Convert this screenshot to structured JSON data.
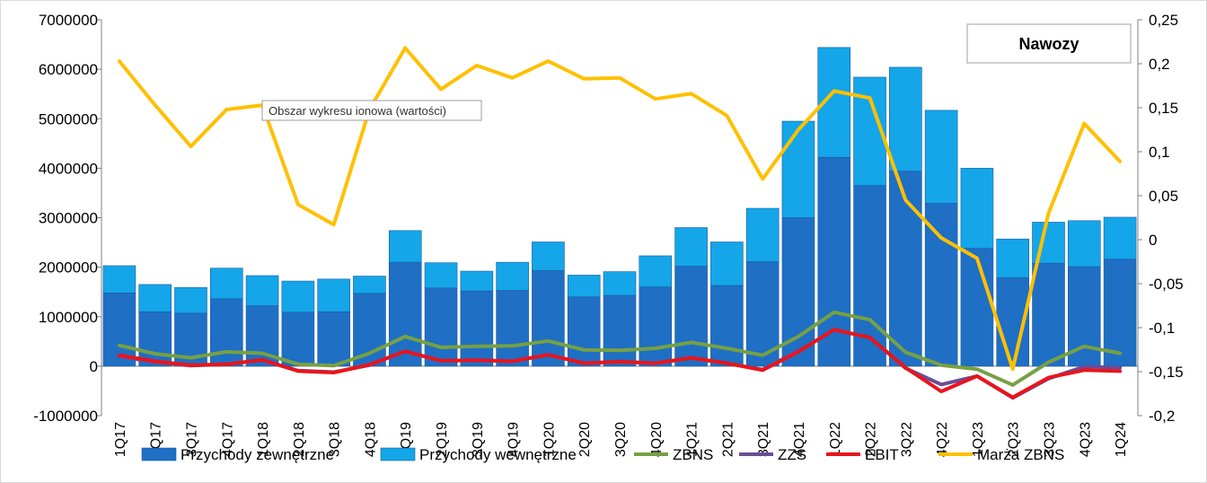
{
  "chart_data": {
    "type": "bar",
    "title": "Nawozy",
    "tooltip": "Obszar wykresu ionowa (wartości)",
    "categories": [
      "1Q17",
      "2Q17",
      "3Q17",
      "4Q17",
      "1Q18",
      "2Q18",
      "3Q18",
      "4Q18",
      "1Q19",
      "2Q19",
      "3Q19",
      "4Q19",
      "1Q20",
      "2Q20",
      "3Q20",
      "4Q20",
      "1Q21",
      "2Q21",
      "3Q21",
      "4Q21",
      "1Q22",
      "2Q22",
      "3Q22",
      "4Q22",
      "1Q23",
      "2Q23",
      "3Q23",
      "4Q23",
      "1Q24"
    ],
    "y_left": {
      "min": -1000000,
      "max": 7000000,
      "step": 1000000,
      "ticks": [
        "-1000000",
        "0",
        "1000000",
        "2000000",
        "3000000",
        "4000000",
        "5000000",
        "6000000",
        "7000000"
      ]
    },
    "y_right": {
      "min": -0.2,
      "max": 0.25,
      "step": 0.05,
      "ticks": [
        "-0,2",
        "-0,15",
        "-0,1",
        "-0,05",
        "0",
        "0,05",
        "0,1",
        "0,15",
        "0,2",
        "0,25"
      ]
    },
    "grid": false,
    "legend_position": "bottom",
    "series": [
      {
        "name": "Przychody zewnętrzne",
        "kind": "stacked-bar",
        "axis": "left",
        "color": "#1F6FC5",
        "values": [
          1480000,
          1100000,
          1070000,
          1360000,
          1220000,
          1090000,
          1100000,
          1470000,
          2100000,
          1580000,
          1520000,
          1530000,
          1930000,
          1400000,
          1430000,
          1600000,
          2020000,
          1630000,
          2110000,
          3000000,
          4220000,
          3650000,
          3940000,
          3290000,
          2380000,
          1790000,
          2080000,
          2010000,
          2160000
        ]
      },
      {
        "name": "Przychody wewnętrzne",
        "kind": "stacked-bar",
        "axis": "left",
        "color": "#14A6E8",
        "values": [
          550000,
          550000,
          520000,
          620000,
          610000,
          630000,
          660000,
          350000,
          640000,
          510000,
          400000,
          570000,
          580000,
          440000,
          480000,
          630000,
          780000,
          880000,
          1080000,
          1950000,
          2220000,
          2190000,
          2100000,
          1880000,
          1620000,
          780000,
          830000,
          930000,
          850000
        ]
      },
      {
        "name": "ZBNS",
        "kind": "line",
        "axis": "left",
        "color": "#77A043",
        "values": [
          420000,
          250000,
          170000,
          290000,
          260000,
          40000,
          10000,
          260000,
          600000,
          380000,
          400000,
          410000,
          510000,
          330000,
          320000,
          360000,
          480000,
          360000,
          220000,
          600000,
          1090000,
          940000,
          280000,
          20000,
          -60000,
          -380000,
          80000,
          400000,
          260000
        ]
      },
      {
        "name": "ZZS",
        "kind": "line",
        "axis": "left",
        "color": "#6B4C96",
        "values": [
          200000,
          80000,
          10000,
          40000,
          120000,
          -90000,
          -120000,
          20000,
          300000,
          110000,
          120000,
          100000,
          230000,
          60000,
          90000,
          60000,
          160000,
          60000,
          -70000,
          310000,
          730000,
          580000,
          -40000,
          -370000,
          -200000,
          -640000,
          -250000,
          -10000,
          -30000
        ]
      },
      {
        "name": "EBIT",
        "kind": "line",
        "axis": "left",
        "color": "#E9141B",
        "values": [
          220000,
          100000,
          20000,
          40000,
          130000,
          -100000,
          -130000,
          30000,
          300000,
          110000,
          120000,
          100000,
          230000,
          60000,
          90000,
          60000,
          170000,
          60000,
          -80000,
          290000,
          740000,
          580000,
          -30000,
          -510000,
          -200000,
          -630000,
          -230000,
          -80000,
          -100000
        ]
      },
      {
        "name": "Marża ZBNS",
        "kind": "line",
        "axis": "right",
        "color": "#FFC000",
        "values": [
          0.203,
          0.153,
          0.106,
          0.148,
          0.153,
          0.04,
          0.017,
          0.148,
          0.218,
          0.171,
          0.198,
          0.184,
          0.203,
          0.183,
          0.184,
          0.16,
          0.166,
          0.141,
          0.069,
          0.125,
          0.169,
          0.161,
          0.045,
          0.002,
          -0.021,
          -0.147,
          0.03,
          0.132,
          0.089
        ]
      }
    ]
  }
}
